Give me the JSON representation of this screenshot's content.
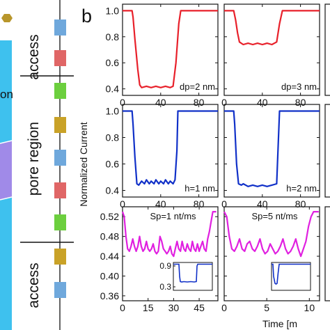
{
  "left_panel": {
    "labels": {
      "access_top": "access",
      "pore_region": "pore region",
      "access_bottom": "access",
      "fragment": "on"
    },
    "segments_top": [
      "#6fa8dc",
      "#e06666"
    ],
    "segments_pore": [
      "#6ccf3e",
      "#c9a227",
      "#6fa8dc",
      "#e06666",
      "#6ccf3e"
    ],
    "segments_bottom": [
      "#c9a227",
      "#6fa8dc"
    ],
    "colors": {
      "channel": "#3ec1ee",
      "purple": "#a08ae8",
      "hex": "#b8962b"
    }
  },
  "panel_label": "b",
  "ylabel": "Normalized Current",
  "xlabel": "Time [m",
  "chart_data": [
    {
      "type": "line",
      "name": "top-left",
      "color": "#e8202a",
      "annotation": "dp=2 nm",
      "xlim": [
        0,
        100
      ],
      "ylim": [
        0.35,
        1.05
      ],
      "xticks": [
        0,
        40,
        80
      ],
      "xtick_labels": [
        "0",
        "40",
        "80"
      ],
      "yticks": [
        0.4,
        0.6,
        0.8,
        1.0
      ],
      "ytick_labels": [
        "0.4",
        "0.6",
        "0.8",
        "1.0"
      ],
      "x": [
        0,
        10,
        11,
        13,
        16,
        18,
        20,
        25,
        30,
        35,
        40,
        45,
        50,
        53,
        56,
        59,
        61,
        100
      ],
      "y": [
        1.0,
        1.0,
        0.95,
        0.78,
        0.55,
        0.43,
        0.41,
        0.42,
        0.41,
        0.42,
        0.41,
        0.42,
        0.41,
        0.42,
        0.6,
        0.9,
        1.0,
        1.0
      ]
    },
    {
      "type": "line",
      "name": "top-middle",
      "color": "#e8202a",
      "annotation": "dp=3 nm",
      "xlim": [
        0,
        100
      ],
      "ylim": [
        0.35,
        1.05
      ],
      "xticks": [
        0,
        40,
        80
      ],
      "xtick_labels": [
        "0",
        "40",
        "80"
      ],
      "yticks": [
        0.4,
        0.6,
        0.8,
        1.0
      ],
      "x": [
        0,
        10,
        12,
        14,
        16,
        20,
        25,
        30,
        35,
        40,
        45,
        50,
        55,
        58,
        61,
        100
      ],
      "y": [
        1.0,
        1.0,
        0.93,
        0.83,
        0.76,
        0.74,
        0.75,
        0.74,
        0.75,
        0.74,
        0.75,
        0.74,
        0.76,
        0.9,
        1.0,
        1.0
      ]
    },
    {
      "type": "line",
      "name": "mid-left",
      "color": "#1030c8",
      "annotation": "h=1 nm",
      "xlim": [
        0,
        100
      ],
      "ylim": [
        0.35,
        1.05
      ],
      "xticks": [
        0,
        40,
        80
      ],
      "xtick_labels": [
        "0",
        "40",
        "80"
      ],
      "yticks": [
        0.4,
        0.6,
        0.8,
        1.0
      ],
      "ytick_labels": [
        "0.4",
        "0.6",
        "0.8",
        "1.0"
      ],
      "x": [
        0,
        10,
        11,
        13,
        15,
        17,
        20,
        23,
        25,
        28,
        30,
        33,
        35,
        38,
        40,
        43,
        45,
        48,
        50,
        53,
        55,
        57,
        58,
        100
      ],
      "y": [
        1.0,
        1.0,
        0.9,
        0.65,
        0.45,
        0.44,
        0.47,
        0.45,
        0.48,
        0.45,
        0.47,
        0.45,
        0.48,
        0.45,
        0.47,
        0.45,
        0.48,
        0.45,
        0.47,
        0.45,
        0.48,
        0.7,
        1.0,
        1.0
      ]
    },
    {
      "type": "line",
      "name": "mid-middle",
      "color": "#1030c8",
      "annotation": "h=2 nm",
      "xlim": [
        0,
        100
      ],
      "ylim": [
        0.35,
        1.05
      ],
      "xticks": [
        0,
        40,
        80
      ],
      "xtick_labels": [
        "0",
        "40",
        "80"
      ],
      "yticks": [
        0.4,
        0.6,
        0.8,
        1.0
      ],
      "x": [
        0,
        10,
        11,
        13,
        15,
        18,
        20,
        25,
        30,
        35,
        40,
        45,
        50,
        55,
        58,
        100
      ],
      "y": [
        1.0,
        1.0,
        0.9,
        0.6,
        0.45,
        0.44,
        0.45,
        0.43,
        0.44,
        0.43,
        0.44,
        0.43,
        0.44,
        0.45,
        1.0,
        1.0
      ]
    },
    {
      "type": "line",
      "name": "bottom-left",
      "color": "#e020e0",
      "annotation": "Sp=1 nt/ms",
      "xlim": [
        0,
        56
      ],
      "ylim": [
        0.35,
        0.54
      ],
      "xticks": [
        0,
        15,
        30,
        45
      ],
      "xtick_labels": [
        "0",
        "15",
        "30",
        "45"
      ],
      "yticks": [
        0.36,
        0.4,
        0.44,
        0.48,
        0.52
      ],
      "ytick_labels": [
        "0.36",
        "0.40",
        "0.44",
        "0.48",
        "0.52"
      ],
      "x": [
        0,
        1,
        2,
        3,
        4,
        5,
        6,
        7,
        8,
        9,
        10,
        11,
        12,
        13,
        14,
        15,
        16,
        17,
        18,
        19,
        20,
        21,
        22,
        23,
        24,
        25,
        26,
        27,
        28,
        29,
        30,
        31,
        32,
        33,
        34,
        35,
        36,
        37,
        38,
        39,
        40,
        41,
        42,
        43,
        44,
        45,
        46,
        47,
        48,
        49,
        50,
        51,
        52,
        53,
        54,
        55
      ],
      "y": [
        0.53,
        0.52,
        0.48,
        0.455,
        0.45,
        0.46,
        0.475,
        0.46,
        0.45,
        0.46,
        0.48,
        0.46,
        0.45,
        0.455,
        0.47,
        0.455,
        0.45,
        0.455,
        0.465,
        0.45,
        0.445,
        0.45,
        0.48,
        0.47,
        0.455,
        0.45,
        0.445,
        0.45,
        0.46,
        0.445,
        0.44,
        0.455,
        0.47,
        0.455,
        0.45,
        0.47,
        0.455,
        0.45,
        0.465,
        0.455,
        0.45,
        0.47,
        0.455,
        0.45,
        0.465,
        0.45,
        0.46,
        0.47,
        0.455,
        0.45,
        0.475,
        0.49,
        0.51,
        0.53,
        0.53,
        0.53
      ]
    },
    {
      "type": "line",
      "name": "bottom-middle",
      "color": "#e020e0",
      "annotation": "Sp=5 nt/ms",
      "xlim": [
        0,
        11.2
      ],
      "ylim": [
        0.35,
        0.54
      ],
      "xticks": [
        0,
        5,
        10
      ],
      "xtick_labels": [
        "0",
        "5",
        "10"
      ],
      "yticks": [
        0.36,
        0.4,
        0.44,
        0.48,
        0.52
      ],
      "x": [
        0,
        0.3,
        0.6,
        0.9,
        1.2,
        1.5,
        1.8,
        2.1,
        2.4,
        2.7,
        3.0,
        3.3,
        3.6,
        3.9,
        4.2,
        4.5,
        4.8,
        5.1,
        5.4,
        5.7,
        6.0,
        6.3,
        6.6,
        6.9,
        7.2,
        7.5,
        7.8,
        8.1,
        8.4,
        8.7,
        9.0,
        9.3,
        9.6,
        9.9,
        10.2,
        10.5,
        10.8,
        11.1
      ],
      "y": [
        0.53,
        0.52,
        0.48,
        0.455,
        0.45,
        0.46,
        0.475,
        0.455,
        0.45,
        0.465,
        0.47,
        0.455,
        0.45,
        0.46,
        0.475,
        0.455,
        0.445,
        0.45,
        0.465,
        0.455,
        0.445,
        0.45,
        0.46,
        0.475,
        0.455,
        0.445,
        0.45,
        0.46,
        0.475,
        0.455,
        0.44,
        0.455,
        0.47,
        0.5,
        0.52,
        0.53,
        0.53,
        0.53
      ]
    }
  ],
  "insets": [
    {
      "type": "line",
      "color": "#1030c8",
      "xlim": [
        0,
        56
      ],
      "ylim": [
        0.2,
        1.0
      ],
      "yticks": [
        0.3,
        0.9
      ],
      "ytick_labels": [
        "0.3",
        "0.9"
      ],
      "x": [
        0,
        8,
        9,
        10,
        12,
        15,
        20,
        25,
        30,
        33,
        34,
        35,
        56
      ],
      "y": [
        0.95,
        0.95,
        0.6,
        0.45,
        0.44,
        0.45,
        0.44,
        0.45,
        0.44,
        0.45,
        0.9,
        0.95,
        0.95
      ]
    },
    {
      "type": "line",
      "color": "#1030c8",
      "xlim": [
        0,
        11.2
      ],
      "ylim": [
        0.2,
        1.0
      ],
      "x": [
        0,
        0.4,
        0.6,
        1.0,
        1.3,
        1.6,
        1.9,
        2.2,
        11.2
      ],
      "y": [
        0.95,
        0.95,
        0.6,
        0.4,
        0.38,
        0.4,
        0.7,
        0.95,
        0.95
      ]
    }
  ]
}
